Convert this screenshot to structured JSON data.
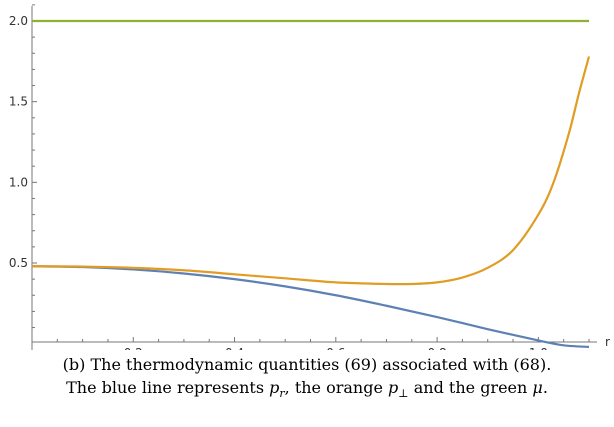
{
  "chart_data": {
    "type": "line",
    "title": "",
    "xlabel": "r",
    "ylabel": "",
    "xlim": [
      0,
      1.1
    ],
    "ylim": [
      -0.03,
      2.1
    ],
    "x_ticks": [
      {
        "value": 0.2,
        "label": "0.2"
      },
      {
        "value": 0.4,
        "label": "0.4"
      },
      {
        "value": 0.6,
        "label": "0.6"
      },
      {
        "value": 0.8,
        "label": "0.8"
      },
      {
        "value": 1.0,
        "label": "1.0"
      }
    ],
    "y_ticks": [
      {
        "value": 0.5,
        "label": "0.5"
      },
      {
        "value": 1.0,
        "label": "1.0"
      },
      {
        "value": 1.5,
        "label": "1.5"
      },
      {
        "value": 2.0,
        "label": "2.0"
      }
    ],
    "grid": false,
    "series": [
      {
        "color": "#5e81b5",
        "x": [
          0.0,
          0.1,
          0.2,
          0.3,
          0.4,
          0.5,
          0.6,
          0.7,
          0.8,
          0.9,
          1.0,
          1.05,
          1.1
        ],
        "y": [
          0.48,
          0.475,
          0.46,
          0.435,
          0.4,
          0.355,
          0.3,
          0.235,
          0.165,
          0.09,
          0.02,
          -0.01,
          -0.02
        ]
      },
      {
        "color": "#e19c24",
        "x": [
          0.0,
          0.1,
          0.2,
          0.3,
          0.4,
          0.5,
          0.6,
          0.7,
          0.75,
          0.8,
          0.85,
          0.9,
          0.95,
          1.0,
          1.03,
          1.06,
          1.08,
          1.1
        ],
        "y": [
          0.48,
          0.478,
          0.47,
          0.455,
          0.43,
          0.405,
          0.38,
          0.37,
          0.37,
          0.38,
          0.41,
          0.47,
          0.58,
          0.8,
          1.0,
          1.3,
          1.55,
          1.78
        ]
      },
      {
        "color": "#8fb032",
        "x": [
          0.0,
          1.1
        ],
        "y": [
          2.0,
          2.0
        ]
      }
    ]
  },
  "caption": {
    "line1": "(b) The thermodynamic quantities (69) associated with (68).",
    "line2_pre": "The blue line represents ",
    "p_symbol": "p",
    "r_sub": "r",
    "line2_mid": ", the orange ",
    "perp_sub": "⊥",
    "line2_post": " and the green ",
    "mu_symbol": "μ",
    "period": "."
  }
}
